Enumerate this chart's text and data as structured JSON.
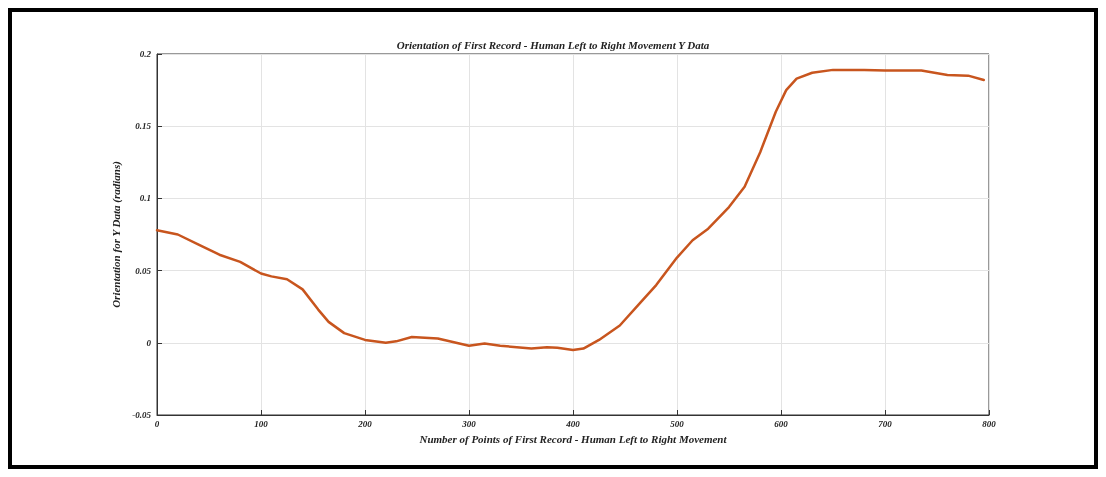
{
  "chart_data": {
    "type": "line",
    "title": "Orientation of First Record - Human Left to Right Movement Y Data",
    "xlabel": "Number of Points of First Record - Human Left to Right Movement",
    "ylabel": "Orientation for Y Data (radians)",
    "x": [
      0,
      20,
      40,
      60,
      80,
      100,
      110,
      125,
      140,
      155,
      165,
      180,
      200,
      220,
      230,
      245,
      270,
      300,
      315,
      330,
      360,
      375,
      385,
      400,
      410,
      425,
      445,
      465,
      480,
      500,
      515,
      530,
      550,
      565,
      580,
      595,
      605,
      615,
      630,
      650,
      680,
      700,
      735,
      760,
      780,
      795
    ],
    "series": [
      {
        "color": "#c8551e",
        "values": [
          0.078,
          0.075,
          0.068,
          0.061,
          0.056,
          0.048,
          0.046,
          0.044,
          0.037,
          0.023,
          0.0145,
          0.0067,
          0.002,
          0.0,
          0.001,
          0.004,
          0.003,
          -0.002,
          -0.0005,
          -0.002,
          -0.004,
          -0.003,
          -0.0035,
          -0.005,
          -0.004,
          0.002,
          0.012,
          0.028,
          0.04,
          0.059,
          0.071,
          0.079,
          0.094,
          0.108,
          0.132,
          0.16,
          0.175,
          0.183,
          0.187,
          0.189,
          0.189,
          0.1885,
          0.1885,
          0.1855,
          0.185,
          0.182
        ]
      }
    ],
    "xlim": [
      0,
      800
    ],
    "xticks": [
      0,
      100,
      200,
      300,
      400,
      500,
      600,
      700,
      800
    ],
    "ylim": [
      -0.05,
      0.2
    ],
    "yticks": [
      -0.05,
      0,
      0.05,
      0.1,
      0.15,
      0.2
    ],
    "grid": true,
    "marker": "none",
    "line_style": "solid"
  }
}
